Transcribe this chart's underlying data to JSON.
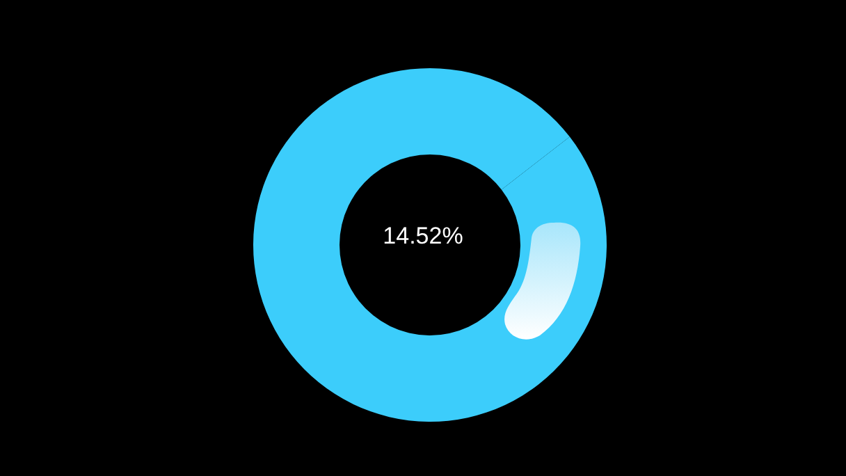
{
  "chart_data": {
    "type": "donut",
    "categories": [
      null,
      null
    ],
    "values": [
      14.52,
      85.48
    ],
    "colors": [
      "#3ccdfb",
      "#3ccdfb"
    ],
    "annotations": [
      "14.52%"
    ],
    "legend": false
  }
}
